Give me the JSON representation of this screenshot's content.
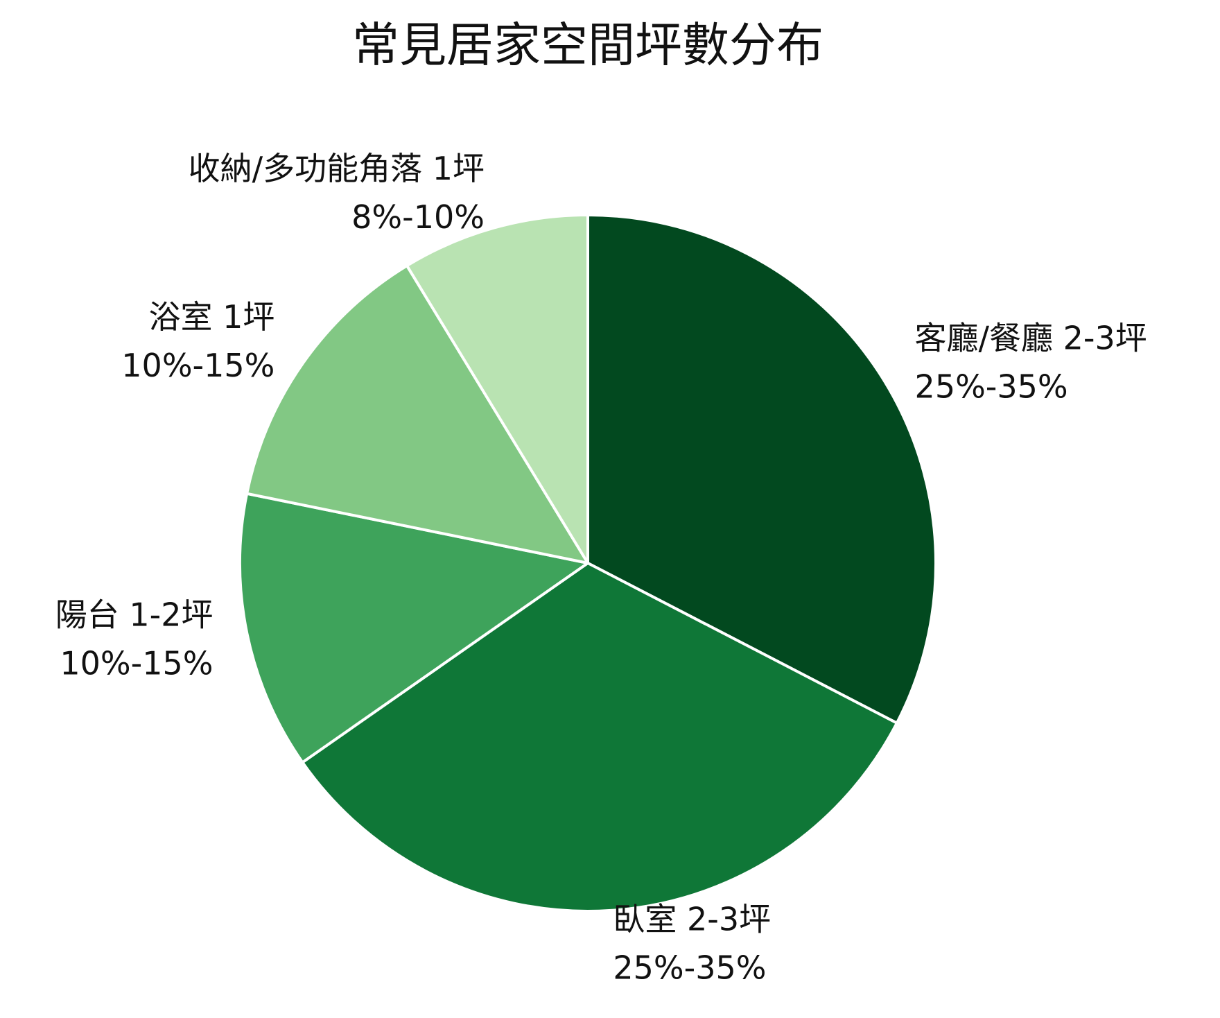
{
  "chart_data": {
    "type": "pie",
    "title": "常見居家空間坪數分布",
    "categories": [
      "客廳/餐廳 2-3坪",
      "臥室 2-3坪",
      "陽台 1-2坪",
      "浴室 1坪",
      "收納/多功能角落 1坪"
    ],
    "ranges": [
      "25%-35%",
      "25%-35%",
      "10%-15%",
      "10%-15%",
      "8%-10%"
    ],
    "values": [
      32.6,
      32.7,
      12.9,
      13.1,
      8.7
    ],
    "colors": [
      "#02491f",
      "#0f7737",
      "#3ea35b",
      "#82c884",
      "#b9e3b2"
    ]
  }
}
